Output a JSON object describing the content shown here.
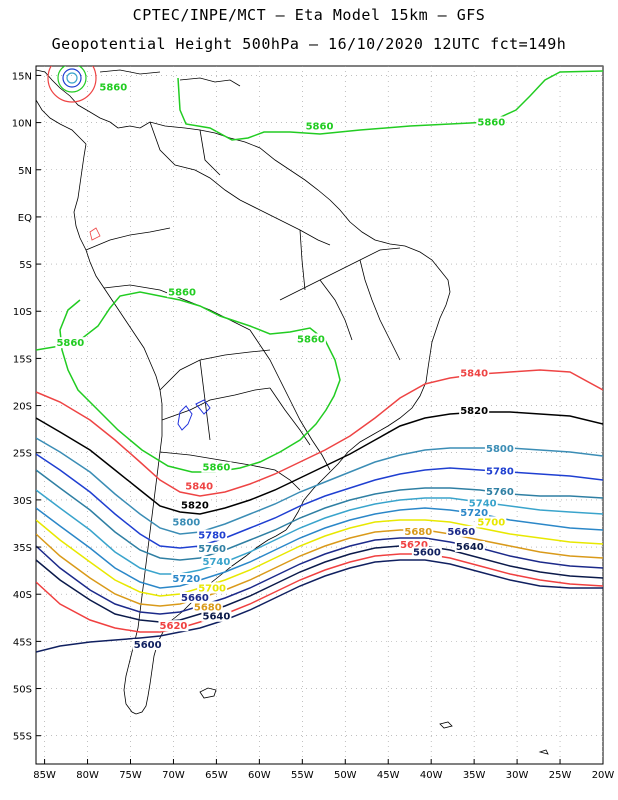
{
  "header": {
    "title_line1": "CPTEC/INPE/MCT –  Eta Model 15km – GFS",
    "title_line2": "Geopotential Height 500hPa – 16/10/2020 12UTC fct=149h"
  },
  "axes": {
    "lat_labels": [
      "15N",
      "10N",
      "5N",
      "EQ",
      "5S",
      "10S",
      "15S",
      "20S",
      "25S",
      "30S",
      "35S",
      "40S",
      "45S",
      "50S",
      "55S"
    ],
    "lon_labels": [
      "85W",
      "80W",
      "75W",
      "70W",
      "65W",
      "60W",
      "55W",
      "50W",
      "45W",
      "40W",
      "35W",
      "30W",
      "25W",
      "20W"
    ]
  },
  "map_data": {
    "lon_range": [
      -86,
      -20
    ],
    "lat_range": [
      16,
      -58
    ],
    "contour_colors": {
      "5860": "#22cc22",
      "5840": "#ee4444",
      "5820": "#000000",
      "5800": "#3b8db5",
      "5780": "#1f3fd1",
      "5760": "#2f7fa3",
      "5740": "#3aa4cc",
      "5720": "#2b87c8",
      "5700": "#e8e800",
      "5680": "#d99a1a",
      "5660": "#1c2a8a",
      "5640": "#0b1a4a",
      "5620": "#f04040",
      "5600": "#102060"
    },
    "contour_labels": [
      {
        "text": "5860",
        "color": "#22cc22",
        "lon": -77,
        "lat": 13.5
      },
      {
        "text": "5860",
        "color": "#22cc22",
        "lon": -53,
        "lat": 9.4
      },
      {
        "text": "5860",
        "color": "#22cc22",
        "lon": -33,
        "lat": 9.8
      },
      {
        "text": "5860",
        "color": "#22cc22",
        "lon": -69,
        "lat": -8.2
      },
      {
        "text": "5860",
        "color": "#22cc22",
        "lon": -82,
        "lat": -13.6
      },
      {
        "text": "5860",
        "color": "#22cc22",
        "lon": -54,
        "lat": -13.2
      },
      {
        "text": "5860",
        "color": "#22cc22",
        "lon": -65,
        "lat": -26.8
      },
      {
        "text": "5840",
        "color": "#ee4444",
        "lon": -35,
        "lat": -16.8
      },
      {
        "text": "5840",
        "color": "#ee4444",
        "lon": -67,
        "lat": -28.8
      },
      {
        "text": "5820",
        "color": "#000000",
        "lon": -35,
        "lat": -20.8
      },
      {
        "text": "5820",
        "color": "#000000",
        "lon": -67.5,
        "lat": -30.8
      },
      {
        "text": "5800",
        "color": "#3b8db5",
        "lon": -32,
        "lat": -24.8
      },
      {
        "text": "5800",
        "color": "#3b8db5",
        "lon": -68.5,
        "lat": -32.6
      },
      {
        "text": "5780",
        "color": "#1f3fd1",
        "lon": -32,
        "lat": -27.2
      },
      {
        "text": "5780",
        "color": "#1f3fd1",
        "lon": -65.5,
        "lat": -34
      },
      {
        "text": "5760",
        "color": "#2f7fa3",
        "lon": -32,
        "lat": -29.4
      },
      {
        "text": "5760",
        "color": "#2f7fa3",
        "lon": -65.5,
        "lat": -35.4
      },
      {
        "text": "5740",
        "color": "#3aa4cc",
        "lon": -34,
        "lat": -30.6
      },
      {
        "text": "5740",
        "color": "#3aa4cc",
        "lon": -65,
        "lat": -36.8
      },
      {
        "text": "5720",
        "color": "#2b87c8",
        "lon": -35,
        "lat": -31.6
      },
      {
        "text": "5720",
        "color": "#2b87c8",
        "lon": -68.5,
        "lat": -38.6
      },
      {
        "text": "5700",
        "color": "#e8e800",
        "lon": -33,
        "lat": -32.6
      },
      {
        "text": "5700",
        "color": "#e8e800",
        "lon": -65.5,
        "lat": -39.6
      },
      {
        "text": "5680",
        "color": "#d99a1a",
        "lon": -41.5,
        "lat": -33.6
      },
      {
        "text": "5680",
        "color": "#d99a1a",
        "lon": -66,
        "lat": -41.6
      },
      {
        "text": "5660",
        "color": "#1c2a8a",
        "lon": -36.5,
        "lat": -33.6
      },
      {
        "text": "5660",
        "color": "#1c2a8a",
        "lon": -67.5,
        "lat": -40.6
      },
      {
        "text": "5640",
        "color": "#0b1a4a",
        "lon": -35.5,
        "lat": -35.2
      },
      {
        "text": "5640",
        "color": "#0b1a4a",
        "lon": -65,
        "lat": -42.6
      },
      {
        "text": "5620",
        "color": "#f04040",
        "lon": -42,
        "lat": -35
      },
      {
        "text": "5620",
        "color": "#f04040",
        "lon": -70,
        "lat": -43.6
      },
      {
        "text": "5600",
        "color": "#102060",
        "lon": -40.5,
        "lat": -35.8
      },
      {
        "text": "5600",
        "color": "#102060",
        "lon": -73,
        "lat": -45.6
      }
    ]
  }
}
